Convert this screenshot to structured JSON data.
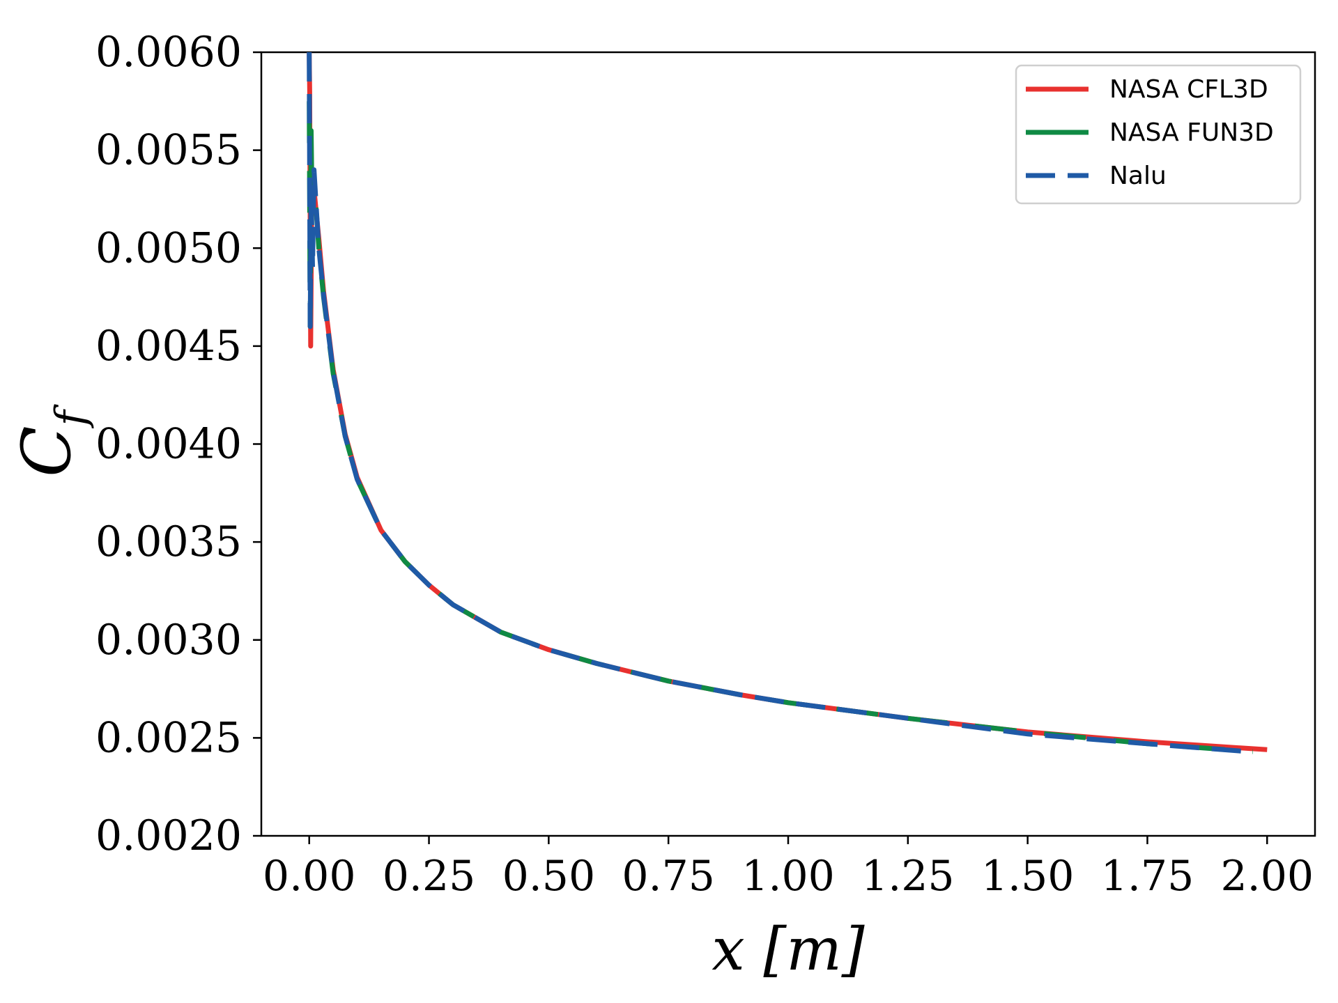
{
  "chart_data": {
    "type": "line",
    "title": "",
    "xlabel": "x [m]",
    "ylabel": "C_f",
    "ylabel_base": "C",
    "ylabel_sub": "f",
    "xlim": [
      -0.1,
      2.1
    ],
    "ylim": [
      0.002,
      0.006
    ],
    "xticks": [
      0.0,
      0.25,
      0.5,
      0.75,
      1.0,
      1.25,
      1.5,
      1.75,
      2.0
    ],
    "xtick_labels": [
      "0.00",
      "0.25",
      "0.50",
      "0.75",
      "1.00",
      "1.25",
      "1.50",
      "1.75",
      "2.00"
    ],
    "yticks": [
      0.002,
      0.0025,
      0.003,
      0.0035,
      0.004,
      0.0045,
      0.005,
      0.0055,
      0.006
    ],
    "ytick_labels": [
      "0.0020",
      "0.0025",
      "0.0030",
      "0.0035",
      "0.0040",
      "0.0045",
      "0.0050",
      "0.0055",
      "0.0060"
    ],
    "grid": false,
    "legend_position": "top-right",
    "series": [
      {
        "name": "NASA CFL3D",
        "color": "#e8312f",
        "dash": "solid",
        "x": [
          0.0,
          0.001,
          0.003,
          0.005,
          0.01,
          0.02,
          0.03,
          0.05,
          0.075,
          0.1,
          0.15,
          0.2,
          0.25,
          0.3,
          0.4,
          0.5,
          0.6,
          0.75,
          0.9,
          1.0,
          1.25,
          1.5,
          1.75,
          2.0
        ],
        "y": [
          0.006,
          0.0058,
          0.0045,
          0.0052,
          0.0053,
          0.00505,
          0.00478,
          0.00438,
          0.00405,
          0.00383,
          0.00356,
          0.0034,
          0.00328,
          0.00318,
          0.00304,
          0.00295,
          0.00288,
          0.00279,
          0.00272,
          0.00268,
          0.0026,
          0.00253,
          0.00248,
          0.00244
        ]
      },
      {
        "name": "NASA FUN3D",
        "color": "#0f8a44",
        "dash": "solid",
        "x": [
          0.0,
          0.002,
          0.004,
          0.006,
          0.01,
          0.02,
          0.03,
          0.05,
          0.075,
          0.1,
          0.15,
          0.2,
          0.25,
          0.3,
          0.4,
          0.5,
          0.6,
          0.75,
          0.9,
          1.0,
          1.25,
          1.5,
          1.75,
          1.97
        ],
        "y": [
          0.00575,
          0.0046,
          0.0056,
          0.0052,
          0.00535,
          0.005,
          0.00475,
          0.00436,
          0.00404,
          0.00382,
          0.00356,
          0.0034,
          0.00328,
          0.00318,
          0.00304,
          0.00295,
          0.00288,
          0.00279,
          0.00272,
          0.00268,
          0.0026,
          0.00253,
          0.00247,
          0.00243
        ]
      },
      {
        "name": "Nalu",
        "color": "#1f5aa6",
        "dash": "dashed",
        "x": [
          0.0,
          0.002,
          0.004,
          0.007,
          0.01,
          0.015,
          0.02,
          0.03,
          0.05,
          0.075,
          0.1,
          0.15,
          0.2,
          0.25,
          0.3,
          0.4,
          0.5,
          0.6,
          0.75,
          0.9,
          1.0,
          1.25,
          1.5,
          1.75,
          1.96
        ],
        "y": [
          0.006,
          0.0046,
          0.0053,
          0.0049,
          0.0054,
          0.0052,
          0.005,
          0.00476,
          0.00437,
          0.00404,
          0.00382,
          0.00356,
          0.0034,
          0.00328,
          0.00318,
          0.00304,
          0.00295,
          0.00288,
          0.00279,
          0.00272,
          0.00268,
          0.0026,
          0.00252,
          0.00247,
          0.00243
        ]
      }
    ]
  }
}
